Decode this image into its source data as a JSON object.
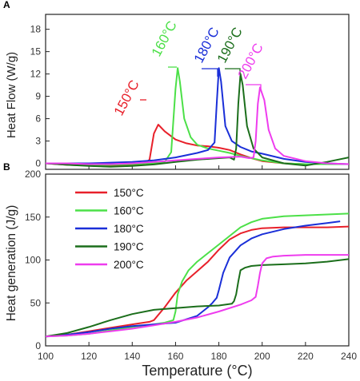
{
  "chart_data": [
    {
      "panel": "A",
      "type": "line",
      "ylabel": "Heat Flow (W/g)",
      "xlim": [
        100,
        240
      ],
      "ylim": [
        -0.8,
        20
      ],
      "yticks": [
        0,
        3,
        6,
        9,
        12,
        15,
        18
      ],
      "grid": false,
      "series": [
        {
          "name": "150°C",
          "color": "#e8202a",
          "x": [
            100,
            110,
            120,
            130,
            140,
            145,
            148,
            150,
            152,
            155,
            160,
            165,
            170,
            175,
            180,
            185,
            190,
            195,
            200,
            210,
            220,
            230,
            240
          ],
          "y": [
            0,
            -0.2,
            -0.3,
            -0.35,
            -0.3,
            -0.15,
            0.5,
            4.0,
            5.2,
            4.3,
            3.2,
            2.7,
            2.4,
            2.3,
            2.1,
            1.8,
            1.2,
            0.7,
            0.3,
            0.0,
            -0.1,
            -0.1,
            -0.1
          ]
        },
        {
          "name": "160°C",
          "color": "#4ce048",
          "x": [
            100,
            110,
            120,
            130,
            140,
            150,
            155,
            158,
            160,
            161,
            162,
            164,
            167,
            170,
            175,
            180,
            185,
            190,
            200,
            210,
            220,
            230,
            240
          ],
          "y": [
            0,
            -0.1,
            -0.2,
            -0.2,
            -0.1,
            0.05,
            0.2,
            1.5,
            10.0,
            12.8,
            11.0,
            6.0,
            3.5,
            2.5,
            2.0,
            1.7,
            1.4,
            1.0,
            0.4,
            0.0,
            -0.1,
            -0.1,
            -0.1
          ]
        },
        {
          "name": "180°C",
          "color": "#1a2fd8",
          "x": [
            100,
            110,
            120,
            130,
            140,
            150,
            160,
            170,
            175,
            178,
            179,
            180,
            181,
            183,
            186,
            190,
            195,
            200,
            210,
            220,
            230,
            240
          ],
          "y": [
            0,
            0,
            0,
            0.1,
            0.2,
            0.4,
            0.8,
            1.4,
            1.8,
            2.8,
            8.0,
            12.8,
            11.0,
            5.0,
            3.0,
            2.2,
            1.6,
            1.3,
            0.6,
            0.2,
            0.0,
            -0.1
          ]
        },
        {
          "name": "190°C",
          "color": "#1b6e1b",
          "x": [
            100,
            110,
            120,
            130,
            140,
            150,
            160,
            170,
            180,
            185,
            187,
            188,
            189,
            190,
            191,
            193,
            196,
            200,
            210,
            220,
            230,
            240
          ],
          "y": [
            0,
            -0.2,
            -0.35,
            -0.45,
            -0.35,
            -0.15,
            0.2,
            0.5,
            0.7,
            0.8,
            0.5,
            2.0,
            8.0,
            12.0,
            10.5,
            5.0,
            2.0,
            0.8,
            0.0,
            -0.3,
            0.2,
            0.8
          ]
        },
        {
          "name": "200°C",
          "color": "#ee3cee",
          "x": [
            100,
            110,
            120,
            130,
            140,
            150,
            160,
            170,
            180,
            190,
            194,
            196,
            197,
            198,
            199,
            201,
            203,
            206,
            210,
            220,
            230,
            240
          ],
          "y": [
            0,
            0.0,
            -0.1,
            -0.1,
            0.0,
            0.2,
            0.4,
            0.6,
            0.8,
            0.9,
            0.7,
            0.8,
            3.0,
            8.0,
            10.2,
            8.5,
            4.5,
            2.0,
            1.0,
            0.3,
            0.0,
            -0.1
          ]
        }
      ],
      "annotations": [
        "150°C",
        "160°C",
        "180°C",
        "190°C",
        "200°C"
      ]
    },
    {
      "panel": "B",
      "type": "line",
      "xlabel": "Temperature (°C)",
      "ylabel": "Heat generation (J/g)",
      "xlim": [
        100,
        240
      ],
      "ylim": [
        0,
        200
      ],
      "xticks": [
        100,
        120,
        140,
        160,
        180,
        200,
        220,
        240
      ],
      "yticks": [
        0,
        50,
        100,
        150,
        200
      ],
      "legend": "top-left",
      "grid": false,
      "series": [
        {
          "name": "150°C",
          "color": "#e8202a",
          "x": [
            100,
            110,
            120,
            130,
            140,
            148,
            150,
            155,
            160,
            165,
            170,
            175,
            180,
            185,
            190,
            195,
            200,
            210,
            220,
            230,
            240
          ],
          "y": [
            11,
            13,
            17,
            21,
            25,
            28,
            30,
            45,
            62,
            76,
            87,
            98,
            112,
            124,
            131,
            135,
            137,
            138,
            138,
            138,
            139
          ]
        },
        {
          "name": "160°C",
          "color": "#4ce048",
          "x": [
            100,
            110,
            120,
            130,
            140,
            150,
            155,
            159,
            160,
            161,
            163,
            166,
            170,
            175,
            180,
            185,
            190,
            195,
            200,
            210,
            220,
            230,
            240
          ],
          "y": [
            11,
            12,
            14,
            18,
            22,
            25,
            27,
            30,
            40,
            60,
            75,
            88,
            98,
            108,
            118,
            128,
            138,
            144,
            148,
            151,
            152,
            153,
            154
          ]
        },
        {
          "name": "180°C",
          "color": "#1a2fd8",
          "x": [
            100,
            110,
            120,
            130,
            140,
            150,
            160,
            170,
            175,
            177,
            178,
            179,
            180,
            182,
            185,
            190,
            195,
            200,
            210,
            220,
            230,
            236
          ],
          "y": [
            11,
            13,
            16,
            20,
            23,
            25,
            27,
            35,
            45,
            50,
            53,
            56,
            65,
            85,
            103,
            117,
            125,
            130,
            136,
            140,
            143,
            145
          ]
        },
        {
          "name": "190°C",
          "color": "#1b6e1b",
          "x": [
            100,
            110,
            120,
            130,
            140,
            150,
            160,
            170,
            180,
            186,
            187,
            188,
            189,
            190,
            192,
            195,
            200,
            210,
            220,
            230,
            240
          ],
          "y": [
            11,
            15,
            22,
            30,
            37,
            42,
            44,
            46,
            47,
            49,
            52,
            60,
            75,
            88,
            91,
            93,
            94,
            95,
            96,
            98,
            101
          ]
        },
        {
          "name": "200°C",
          "color": "#ee3cee",
          "x": [
            100,
            110,
            120,
            130,
            140,
            150,
            160,
            170,
            180,
            190,
            195,
            197,
            198,
            199,
            200,
            202,
            205,
            210,
            220,
            230,
            240
          ],
          "y": [
            11,
            12,
            14,
            17,
            20,
            24,
            28,
            33,
            40,
            48,
            53,
            57,
            70,
            85,
            96,
            102,
            104,
            105,
            106,
            106,
            106
          ]
        }
      ]
    }
  ]
}
